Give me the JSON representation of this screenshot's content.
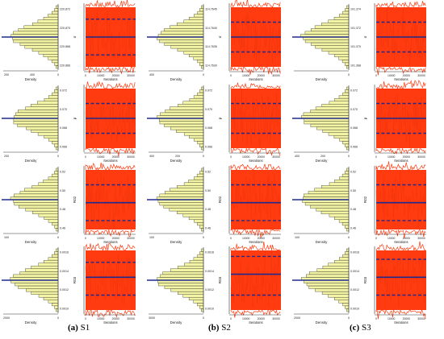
{
  "colors": {
    "histogram_fill": "#f3f3a6",
    "histogram_stroke": "#3c3c28",
    "trace": "#ff3b0f",
    "trace_dark": "#e8300a",
    "mean_line": "#1f2a8c",
    "axis": "#333333"
  },
  "captions": [
    {
      "letter": "(a)",
      "label": "S1"
    },
    {
      "letter": "(b)",
      "label": "S2"
    },
    {
      "letter": "(c)",
      "label": "S3"
    }
  ],
  "chart_data": [
    {
      "type": "histogram",
      "panel": "S1-row1",
      "xlabel": "Density",
      "xticks": [
        "200",
        "400",
        "0"
      ],
      "yticks": [
        "220.872",
        "220.870",
        "220.868",
        "220.866"
      ],
      "trace": {
        "xlabel": "Iterations",
        "ylabel": "σ",
        "xticks": [
          "0",
          "10000",
          "20000",
          "30000"
        ],
        "lower": 0.2,
        "mean": 0.5,
        "upper": 0.8
      }
    },
    {
      "type": "histogram",
      "panel": "S2-row1",
      "xlabel": "Density",
      "xticks": [
        "400",
        "0"
      ],
      "yticks": [
        "114.7645",
        "114.7640",
        "114.7635",
        "114.7630"
      ],
      "trace": {
        "xlabel": "Iterations",
        "ylabel": "σ",
        "xticks": [
          "0",
          "10000",
          "20000",
          "30000"
        ],
        "lower": 0.25,
        "mean": 0.5,
        "upper": 0.75
      }
    },
    {
      "type": "histogram",
      "panel": "S3-row1",
      "xlabel": "Density",
      "xticks": [
        "",
        "0"
      ],
      "yticks": [
        "101.374",
        "101.372",
        "101.370",
        "101.368"
      ],
      "trace": {
        "xlabel": "Iterations",
        "ylabel": "σ",
        "xticks": [
          "0",
          "10000",
          "20000",
          "30000"
        ],
        "lower": 0.25,
        "mean": 0.5,
        "upper": 0.75
      }
    },
    {
      "type": "histogram",
      "panel": "S1-row2",
      "xlabel": "Density",
      "xticks": [
        "200",
        "0"
      ],
      "yticks": [
        "0.072",
        "0.070",
        "0.068",
        "0.066"
      ],
      "trace": {
        "xlabel": "Iterations",
        "ylabel": "p",
        "xticks": [
          "0",
          "10000",
          "20000",
          "30000"
        ],
        "lower": 0.25,
        "mean": 0.5,
        "upper": 0.75
      }
    },
    {
      "type": "histogram",
      "panel": "S2-row2",
      "xlabel": "Density",
      "xticks": [
        "400",
        "200",
        "0"
      ],
      "yticks": [
        "0.072",
        "0.070",
        "0.068",
        "0.066"
      ],
      "trace": {
        "xlabel": "Iterations",
        "ylabel": "p",
        "xticks": [
          "0",
          "10000",
          "20000",
          "30000"
        ],
        "lower": 0.25,
        "mean": 0.5,
        "upper": 0.75
      }
    },
    {
      "type": "histogram",
      "panel": "S3-row2",
      "xlabel": "Density",
      "xticks": [
        "400",
        "200",
        "0"
      ],
      "yticks": [
        "0.072",
        "0.070",
        "0.068",
        "0.066"
      ],
      "trace": {
        "xlabel": "Iterations",
        "ylabel": "p",
        "xticks": [
          "0",
          "10000",
          "20000",
          "30000"
        ],
        "lower": 0.25,
        "mean": 0.5,
        "upper": 0.75
      }
    },
    {
      "type": "histogram",
      "panel": "S1-row3",
      "xlabel": "Density",
      "xticks": [
        "100",
        "0"
      ],
      "yticks": [
        "0.52",
        "0.50",
        "0.48",
        "0.46"
      ],
      "trace": {
        "xlabel": "Iterations",
        "ylabel": "R02",
        "xticks": [
          "0",
          "10000",
          "20000",
          "30000"
        ],
        "lower": 0.25,
        "mean": 0.55,
        "upper": 0.85
      }
    },
    {
      "type": "histogram",
      "panel": "S2-row3",
      "xlabel": "Density",
      "xticks": [
        "100",
        "0"
      ],
      "yticks": [
        "0.52",
        "0.50",
        "0.48",
        "0.46"
      ],
      "trace": {
        "xlabel": "Iterations",
        "ylabel": "R02",
        "xticks": [
          "0",
          "10000",
          "20000",
          "30000"
        ],
        "lower": 0.25,
        "mean": 0.55,
        "upper": 0.85
      }
    },
    {
      "type": "histogram",
      "panel": "S3-row3",
      "xlabel": "Density",
      "xticks": [
        "100",
        "0"
      ],
      "yticks": [
        "0.52",
        "0.50",
        "0.48",
        "0.46"
      ],
      "trace": {
        "xlabel": "Iterations",
        "ylabel": "R02",
        "xticks": [
          "0",
          "10000",
          "20000",
          "30000"
        ],
        "lower": 0.25,
        "mean": 0.55,
        "upper": 0.85
      }
    },
    {
      "type": "histogram",
      "panel": "S1-row4",
      "xlabel": "Density",
      "xticks": [
        "2000",
        "0"
      ],
      "yticks": [
        "0.0016",
        "0.0014",
        "0.0012",
        "0.0010"
      ],
      "trace": {
        "xlabel": "Iterations",
        "ylabel": "R03",
        "xticks": [
          "0",
          "10000",
          "20000",
          "30000"
        ],
        "lower": 0.2,
        "mean": 0.45,
        "upper": 0.75
      }
    },
    {
      "type": "histogram",
      "panel": "S2-row4",
      "xlabel": "Density",
      "xticks": [
        "3000",
        "0"
      ],
      "yticks": [
        "0.0016",
        "0.0014",
        "0.0012",
        "0.0010"
      ],
      "trace": {
        "xlabel": "Iterations",
        "ylabel": "R03",
        "xticks": [
          "0",
          "10000",
          "20000",
          "30000"
        ],
        "lower": 0.1,
        "mean": 0.4,
        "upper": 0.75
      }
    },
    {
      "type": "histogram",
      "panel": "S3-row4",
      "xlabel": "Density",
      "xticks": [
        "2000",
        "0"
      ],
      "yticks": [
        "0.0016",
        "0.0014",
        "0.0012",
        "0.0010"
      ],
      "trace": {
        "xlabel": "Iterations",
        "ylabel": "R03",
        "xticks": [
          "0",
          "10000",
          "20000",
          "30000"
        ],
        "lower": 0.15,
        "mean": 0.45,
        "upper": 0.75
      }
    }
  ]
}
